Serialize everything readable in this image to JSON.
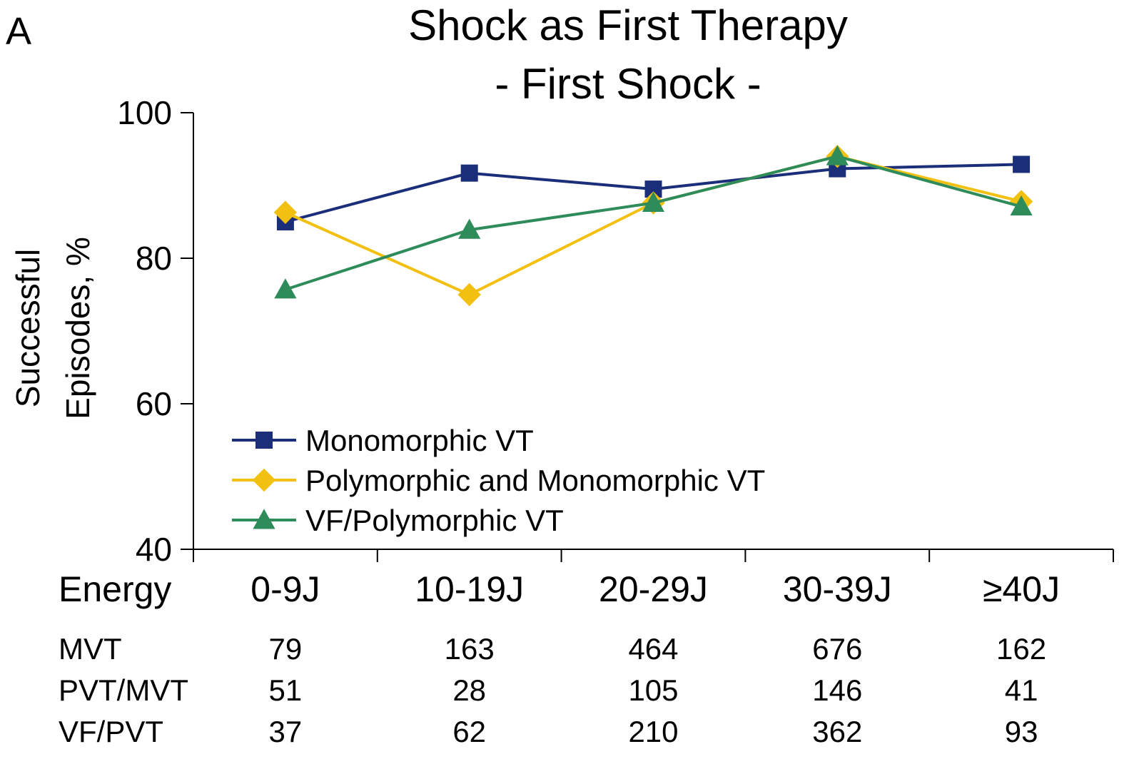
{
  "panel_label": "A",
  "chart_data": {
    "type": "line",
    "title": "Shock as First Therapy",
    "subtitle": "- First Shock -",
    "ylabel_line1": "Successful",
    "ylabel_line2": "Episodes, %",
    "xlabel": "Energy",
    "categories": [
      "0-9J",
      "10-19J",
      "20-29J",
      "30-39J",
      "≥40J"
    ],
    "ylim": [
      40,
      100
    ],
    "yticks": [
      40,
      60,
      80,
      100
    ],
    "grid": false,
    "legend_position": "bottom-left",
    "series": [
      {
        "name": "Monomorphic VT",
        "color": "#1a2e7a",
        "marker": "square",
        "values": [
          85,
          91.7,
          89.5,
          92.3,
          92.9
        ]
      },
      {
        "name": "Polymorphic and Monomorphic VT",
        "color": "#f2c010",
        "marker": "diamond",
        "values": [
          86.3,
          75,
          87.6,
          94,
          87.8
        ]
      },
      {
        "name": "VF/Polymorphic VT",
        "color": "#2e8b5a",
        "marker": "triangle",
        "values": [
          75.7,
          83.9,
          87.6,
          94,
          87.1
        ]
      }
    ],
    "count_table": {
      "rows": [
        {
          "label": "MVT",
          "values": [
            "79",
            "163",
            "464",
            "676",
            "162"
          ]
        },
        {
          "label": "PVT/MVT",
          "values": [
            "51",
            "28",
            "105",
            "146",
            "41"
          ]
        },
        {
          "label": "VF/PVT",
          "values": [
            "37",
            "62",
            "210",
            "362",
            "93"
          ]
        }
      ]
    }
  }
}
